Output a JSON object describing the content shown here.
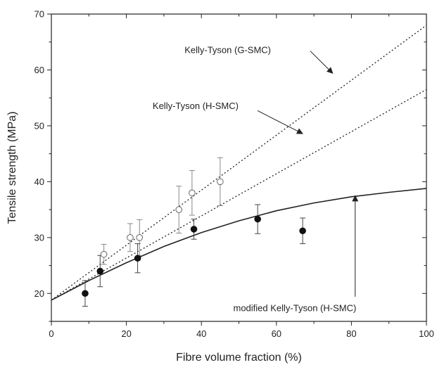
{
  "chart_data": {
    "type": "scatter",
    "xlabel": "Fibre volume fraction (%)",
    "ylabel": "Tensile strength (MPa)",
    "xlim": [
      0,
      100
    ],
    "ylim": [
      15,
      70
    ],
    "xticks": [
      0,
      20,
      40,
      60,
      80,
      100
    ],
    "yticks": [
      20,
      30,
      40,
      50,
      60,
      70
    ],
    "grid": false,
    "series": [
      {
        "kind": "points",
        "marker": "open-circle",
        "x": [
          14,
          21,
          23.5,
          34,
          37.5,
          45
        ],
        "y": [
          27,
          30,
          30,
          35,
          38,
          40
        ],
        "err": [
          1.8,
          2.5,
          3.2,
          4.2,
          4.0,
          4.3
        ]
      },
      {
        "kind": "points",
        "marker": "filled-circle",
        "x": [
          9,
          13,
          23,
          38,
          55,
          67
        ],
        "y": [
          20,
          24,
          26.3,
          31.5,
          33.3,
          31.2
        ],
        "err": [
          2.3,
          2.8,
          2.6,
          1.8,
          2.6,
          2.3
        ]
      },
      {
        "name": "Kelly-Tyson (G-SMC)",
        "kind": "line",
        "style": "dotted",
        "x": [
          0,
          100
        ],
        "y": [
          18.8,
          68
        ]
      },
      {
        "name": "Kelly-Tyson (H-SMC)",
        "kind": "line",
        "style": "dotted",
        "x": [
          0,
          100
        ],
        "y": [
          18.8,
          56.5
        ]
      },
      {
        "name": "modified Kelly-Tyson (H-SMC)",
        "kind": "line",
        "style": "solid",
        "x": [
          0,
          10,
          20,
          30,
          40,
          50,
          60,
          70,
          80,
          90,
          100
        ],
        "y": [
          18.8,
          22.3,
          25.5,
          28.4,
          30.9,
          33.0,
          34.8,
          36.2,
          37.3,
          38.1,
          38.8
        ]
      }
    ],
    "annotations": [
      {
        "text": "Kelly-Tyson (G-SMC)",
        "label_at": [
          35.5,
          63
        ],
        "arrow_from": [
          69,
          63.4
        ],
        "arrow_to": [
          75,
          59.4
        ]
      },
      {
        "text": "Kelly-Tyson (H-SMC)",
        "label_at": [
          27,
          53
        ],
        "arrow_from": [
          55,
          52.7
        ],
        "arrow_to": [
          67,
          48.6
        ]
      },
      {
        "text": "modified Kelly-Tyson (H-SMC)",
        "label_at": [
          48.5,
          16.8
        ],
        "arrow_from": [
          81,
          19.4
        ],
        "arrow_to": [
          81,
          37.5
        ]
      }
    ]
  }
}
